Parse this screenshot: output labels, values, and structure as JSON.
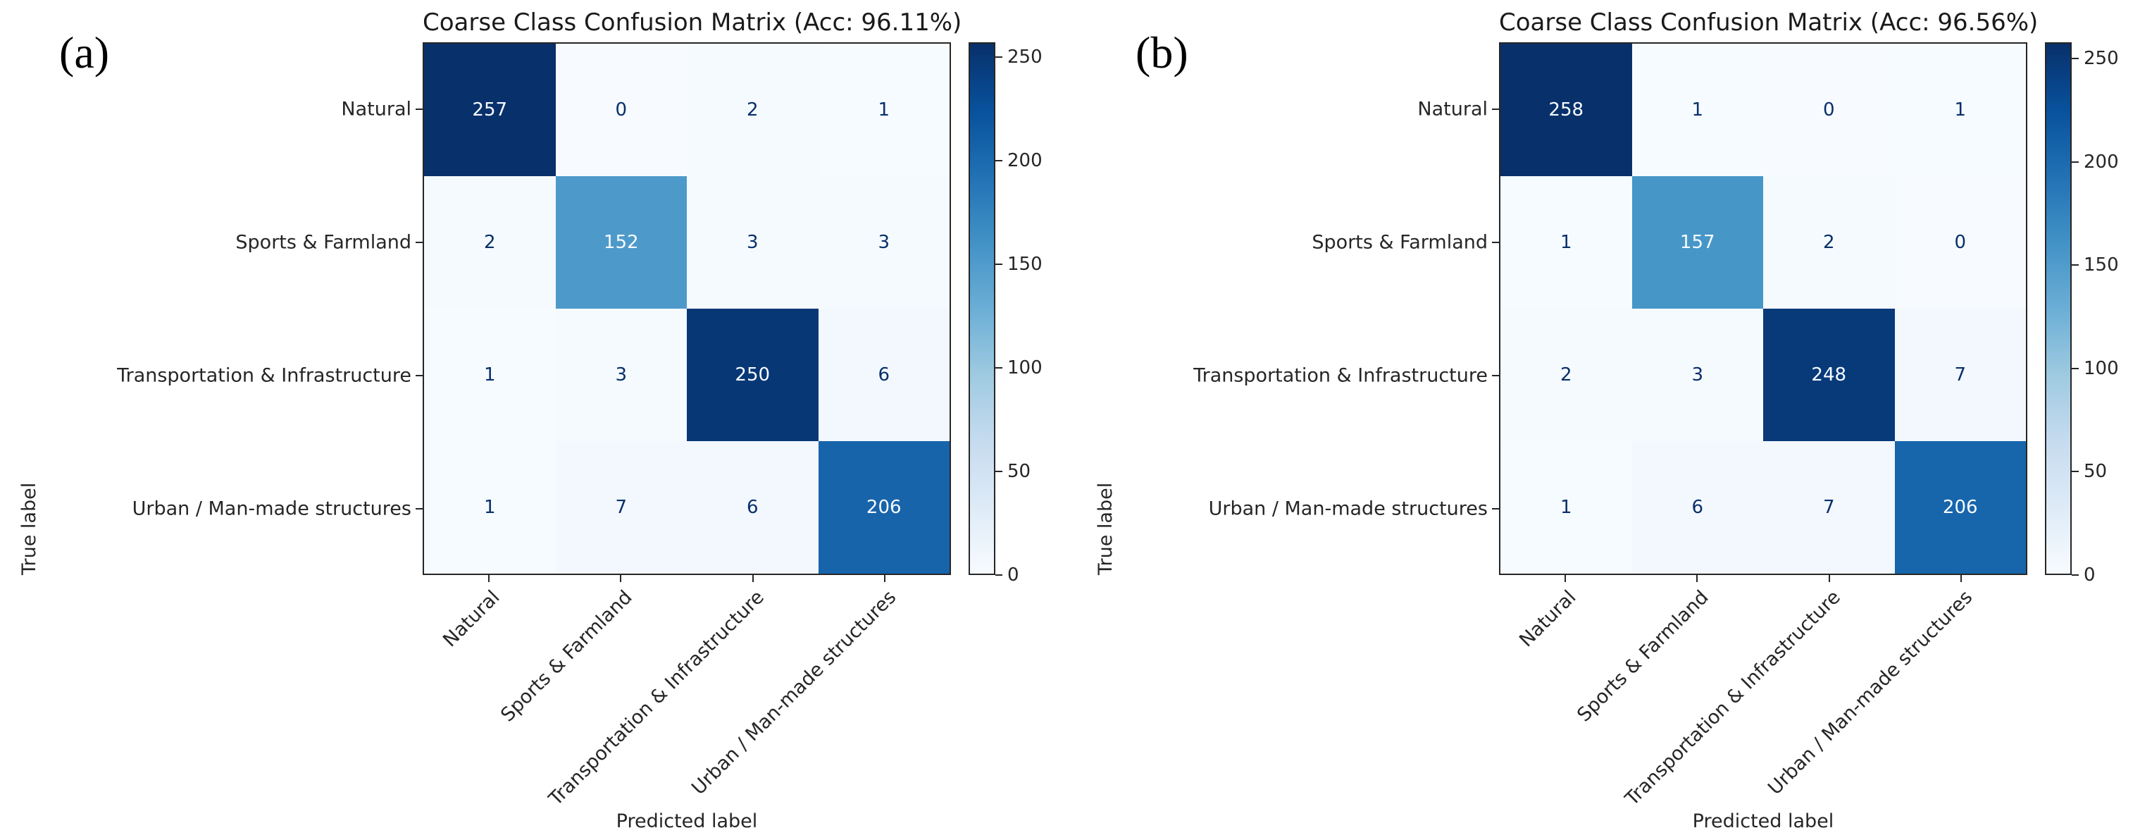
{
  "style": {
    "background": "#ffffff",
    "axis_text_color": "#262626",
    "spine_color": "#262626",
    "cell_text_dark": "#08306b",
    "cell_text_light": "#f7fbff",
    "blues_colormap": [
      "#f7fbff",
      "#deebf7",
      "#c6dbef",
      "#9ecae1",
      "#6baed6",
      "#4292c6",
      "#2171b5",
      "#08519c",
      "#08306b"
    ]
  },
  "chart_data": [
    {
      "type": "heatmap",
      "panel_label": "(a)",
      "title": "Coarse Class Confusion Matrix (Acc: 96.11%)",
      "accuracy": "96.11%",
      "xlabel": "Predicted label",
      "ylabel": "True label",
      "x_categories": [
        "Natural",
        "Sports & Farmland",
        "Transportation & Infrastructure",
        "Urban / Man-made structures"
      ],
      "y_categories": [
        "Natural",
        "Sports & Farmland",
        "Transportation & Infrastructure",
        "Urban / Man-made structures"
      ],
      "values": [
        [
          257,
          0,
          2,
          1
        ],
        [
          2,
          152,
          3,
          3
        ],
        [
          1,
          3,
          250,
          6
        ],
        [
          1,
          7,
          6,
          206
        ]
      ],
      "colormap": "Blues",
      "vmin": 0,
      "vmax": 257,
      "colorbar_ticks": [
        0,
        50,
        100,
        150,
        200,
        250
      ],
      "legend_position": "right-colorbar",
      "grid": false
    },
    {
      "type": "heatmap",
      "panel_label": "(b)",
      "title": "Coarse Class Confusion Matrix (Acc: 96.56%)",
      "accuracy": "96.56%",
      "xlabel": "Predicted label",
      "ylabel": "True label",
      "x_categories": [
        "Natural",
        "Sports & Farmland",
        "Transportation & Infrastructure",
        "Urban / Man-made structures"
      ],
      "y_categories": [
        "Natural",
        "Sports & Farmland",
        "Transportation & Infrastructure",
        "Urban / Man-made structures"
      ],
      "values": [
        [
          258,
          1,
          0,
          1
        ],
        [
          1,
          157,
          2,
          0
        ],
        [
          2,
          3,
          248,
          7
        ],
        [
          1,
          6,
          7,
          206
        ]
      ],
      "colormap": "Blues",
      "vmin": 0,
      "vmax": 258,
      "colorbar_ticks": [
        0,
        50,
        100,
        150,
        200,
        250
      ],
      "legend_position": "right-colorbar",
      "grid": false
    }
  ]
}
